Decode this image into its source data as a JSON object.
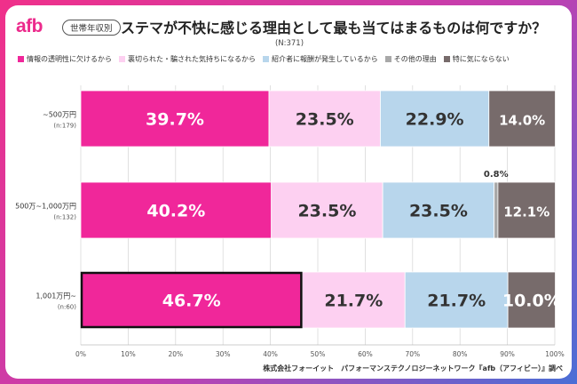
{
  "header": {
    "logo": "afb",
    "badge": "世帯年収別",
    "title": "ステマが不快に感じる理由として最も当てはまるものは何ですか？",
    "subtitle": "(N:371)"
  },
  "source": "株式会社フォーイット　パフォーマンステクノロジーネットワーク『afb（アフィビー）』調べ",
  "chart_data": {
    "type": "bar",
    "orientation": "horizontal",
    "stacked": true,
    "categories": [
      "~500万円",
      "500万~1,000万円",
      "1,001万円~"
    ],
    "category_notes": [
      "(n:179)",
      "(n:132)",
      "(n:60)"
    ],
    "series": [
      {
        "name": "情報の透明性に欠けるから",
        "color": "#f0279a",
        "label_color": "#ffffff",
        "values": [
          39.7,
          40.2,
          46.7
        ]
      },
      {
        "name": "裏切られた・騙された気持ちになるから",
        "color": "#fdd0f1",
        "label_color": "#333333",
        "values": [
          23.5,
          23.5,
          21.7
        ]
      },
      {
        "name": "紹介者に報酬が発生しているから",
        "color": "#b8d6ec",
        "label_color": "#333333",
        "values": [
          22.9,
          23.5,
          21.7
        ]
      },
      {
        "name": "その他の理由",
        "color": "#a8a8a8",
        "label_color": "#333333",
        "values": [
          0.0,
          0.8,
          0.0
        ]
      },
      {
        "name": "特に気にならない",
        "color": "#776b6b",
        "label_color": "#ffffff",
        "values": [
          14.0,
          12.1,
          10.0
        ]
      }
    ],
    "value_labels": [
      [
        "39.7%",
        "23.5%",
        "22.9%",
        "",
        "14.0%"
      ],
      [
        "40.2%",
        "23.5%",
        "23.5%",
        "0.8%",
        "12.1%"
      ],
      [
        "46.7%",
        "21.7%",
        "21.7%",
        "",
        "10.0%"
      ]
    ],
    "xlim": [
      0,
      100
    ],
    "xticks": [
      "0%",
      "10%",
      "20%",
      "30%",
      "40%",
      "50%",
      "60%",
      "70%",
      "80%",
      "90%",
      "100%"
    ],
    "grid": true,
    "legend_position": "top",
    "highlight": {
      "category": 2,
      "series": 0,
      "border_color": "#111111"
    }
  }
}
